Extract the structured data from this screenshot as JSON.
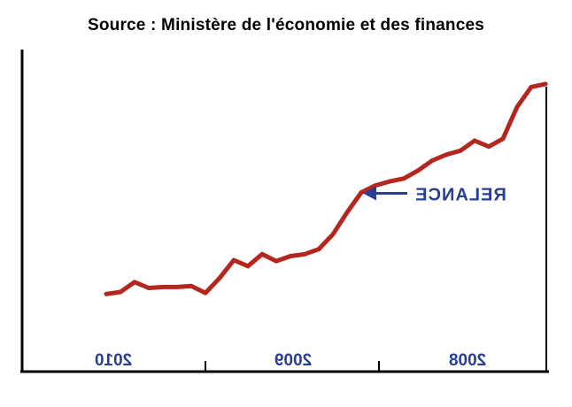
{
  "title": "Source : Ministère de l'économie et des finances",
  "chart_data": {
    "type": "line",
    "title": "Source : Ministère de l'économie et des finances",
    "xlabel": "",
    "ylabel": "",
    "categories": [
      "2010",
      "2009",
      "2008"
    ],
    "series": [
      {
        "name": "",
        "color": "#b5261e",
        "x": [
          0,
          1,
          2,
          3,
          4,
          5,
          6,
          7,
          8,
          9,
          10,
          11,
          12,
          13,
          14,
          15,
          16,
          17,
          18,
          19,
          20,
          21,
          22,
          23,
          24,
          25,
          26,
          27,
          28,
          29,
          30,
          31
        ],
        "values": [
          14,
          15,
          20,
          17,
          17.5,
          17.5,
          18,
          14.5,
          22,
          31,
          28,
          34,
          30.5,
          33,
          34,
          36.5,
          44,
          55,
          65,
          68.5,
          70.5,
          72,
          76,
          81,
          84,
          86,
          91,
          88,
          92,
          108,
          118,
          119.5
        ]
      }
    ],
    "ylim": [
      -25,
      135
    ],
    "grid": false,
    "annotations": [
      {
        "text": "RELANCE",
        "point_index": 18,
        "color": "#2a3f8f",
        "mirrored": true
      }
    ],
    "year_labels_mirrored": true,
    "axis_color": "#000000",
    "year_label_color": "#2a3f8f"
  }
}
